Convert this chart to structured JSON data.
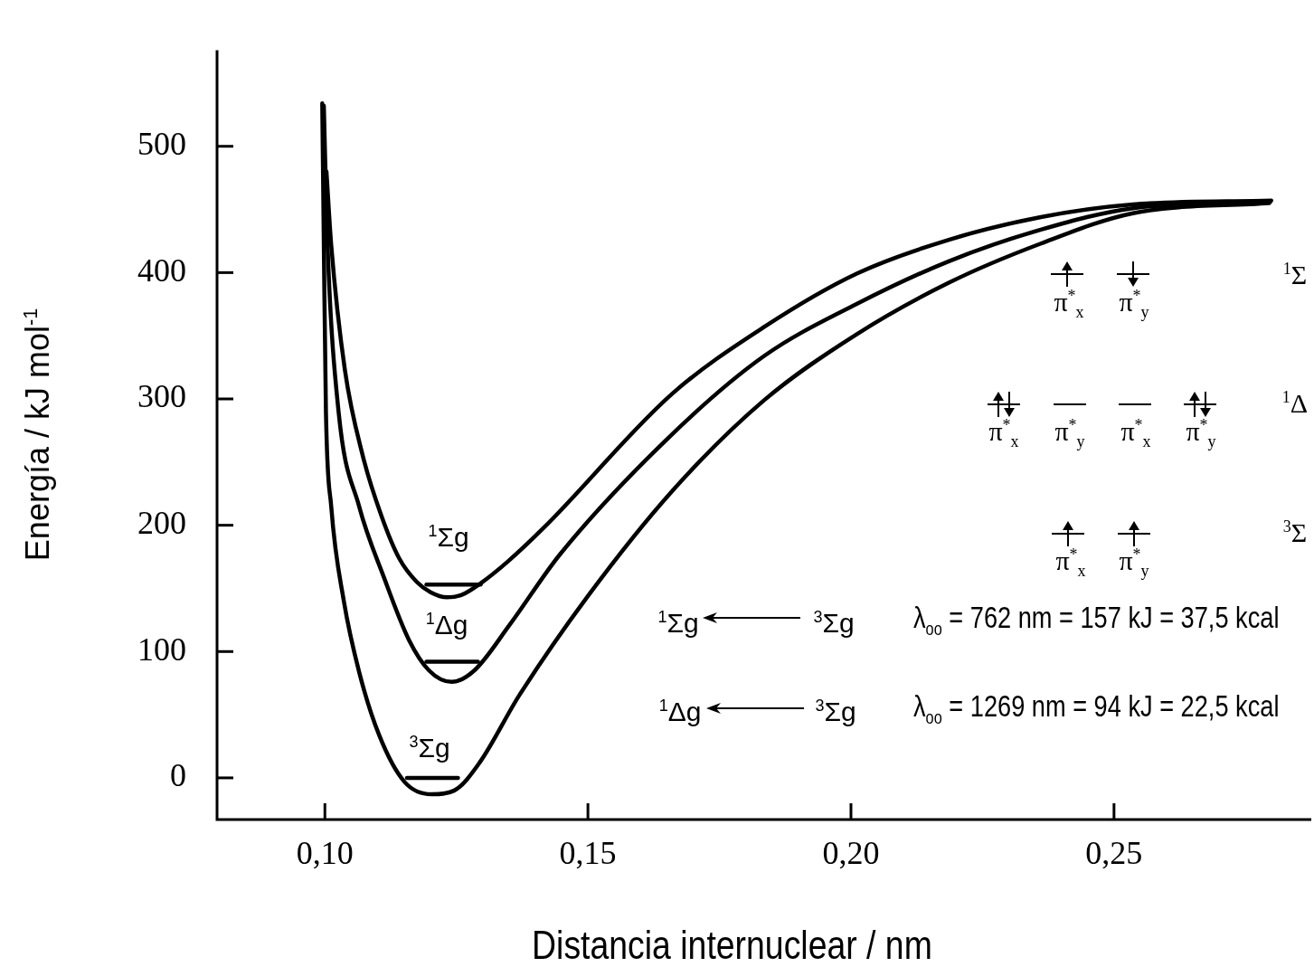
{
  "chart_data": {
    "type": "line",
    "xlabel": "Distancia internuclear / nm",
    "ylabel": "Energía / kJ mol$^{-1}$",
    "xlim": [
      0.0795,
      0.2875
    ],
    "xticks": [
      {
        "value": 0.1,
        "label": "0,10"
      },
      {
        "value": 0.15,
        "label": "0,15"
      },
      {
        "value": 0.2,
        "label": "0,20"
      },
      {
        "value": 0.25,
        "label": "0,25"
      }
    ],
    "ylim": [
      -33,
      576
    ],
    "yticks": [
      0,
      100,
      200,
      300,
      400,
      500
    ],
    "grid": false,
    "legend": false,
    "marker": "none",
    "line_style": "solid",
    "series": [
      {
        "color": "#000000",
        "x": [
          0.1003,
          0.1012,
          0.1038,
          0.1072,
          0.1107,
          0.1141,
          0.1175,
          0.1201,
          0.1232,
          0.1261,
          0.1296,
          0.1347,
          0.1416,
          0.166,
          0.1835,
          0.201,
          0.2186,
          0.2361,
          0.2536,
          0.2799
        ],
        "values": [
          480,
          422,
          323,
          255,
          208,
          174,
          155,
          147,
          143,
          145,
          154,
          171,
          198,
          304,
          357,
          399,
          426,
          444,
          454,
          457
        ]
      },
      {
        "color": "#000000",
        "x": [
          0.0998,
          0.1005,
          0.1026,
          0.1065,
          0.1112,
          0.116,
          0.1198,
          0.1241,
          0.1284,
          0.1351,
          0.1447,
          0.166,
          0.1835,
          0.201,
          0.2186,
          0.2361,
          0.2536,
          0.2797
        ],
        "values": [
          532,
          422,
          290,
          215,
          159,
          109,
          85,
          76,
          85,
          121,
          177,
          272,
          334,
          375,
          409,
          434,
          451,
          456
        ]
      },
      {
        "color": "#000000",
        "x": [
          0.0995,
          0.0998,
          0.1002,
          0.1012,
          0.1036,
          0.1065,
          0.1103,
          0.1151,
          0.1203,
          0.1246,
          0.1294,
          0.1369,
          0.15,
          0.166,
          0.1835,
          0.201,
          0.2186,
          0.2361,
          0.2536,
          0.2795
        ],
        "values": [
          534,
          422,
          290,
          215,
          140,
          84,
          34,
          -3,
          -13,
          -10,
          12,
          65,
          144,
          227,
          299,
          351,
          392,
          423,
          447,
          455
        ]
      },
      {
        "color": "#000000",
        "x": [
          0.1193,
          0.1296
        ],
        "values": [
          153,
          153
        ]
      },
      {
        "color": "#000000",
        "x": [
          0.1193,
          0.1291
        ],
        "values": [
          92,
          92
        ]
      },
      {
        "color": "#000000",
        "x": [
          0.1156,
          0.1253
        ],
        "values": [
          0,
          0
        ]
      }
    ],
    "annotations": [
      "$^{1}$Σg",
      "$^{1}$Δg",
      "$^{3}$Σg",
      "π$^{*}$$_{x}$",
      "π$^{*}$$_{y}$",
      "π$^{*}$$_{x}$",
      "π$^{*}$$_{y}$",
      "π$^{*}$$_{x}$",
      "π$^{*}$$_{y}$",
      "π$^{*}$$_{x}$",
      "π$^{*}$$_{y}$",
      "$^{1}$Σ",
      "$^{1}$Δ",
      "$^{3}$Σ",
      "$^{1}$Σg",
      "$^{3}$Σg",
      "λ$_{oo}$ = 762 nm = 157 kJ = 37,5 kcal",
      "$^{1}$Δg",
      "$^{3}$Σg",
      "λ$_{oo}$ = 1269 nm = 94 kJ = 22,5 kcal"
    ]
  }
}
